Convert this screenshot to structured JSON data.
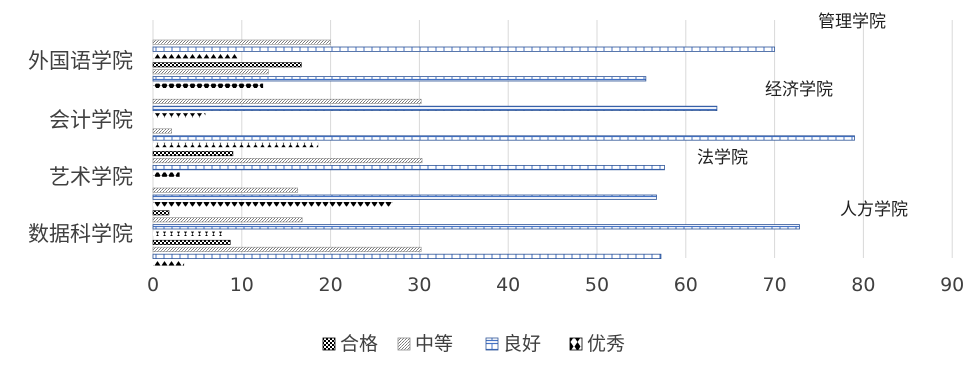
{
  "chart_data": {
    "type": "bar",
    "orientation": "horizontal",
    "categories": [
      "外国语学院",
      "会计学院",
      "艺术学院",
      "数据科学院"
    ],
    "groups": [
      {
        "name": "管理学院",
        "series": [
          {
            "name": "合格",
            "value": 0
          },
          {
            "name": "中等",
            "value": 20
          },
          {
            "name": "良好",
            "value": 70
          },
          {
            "name": "优秀",
            "value": 9.5
          }
        ]
      },
      {
        "name": "外国语学院",
        "series": [
          {
            "name": "合格",
            "value": 16.7
          },
          {
            "name": "中等",
            "value": 13
          },
          {
            "name": "良好",
            "value": 55.5
          },
          {
            "name": "优秀",
            "value": 12.4
          }
        ]
      },
      {
        "name": "经济学院",
        "series": [
          {
            "name": "合格",
            "value": 0
          },
          {
            "name": "中等",
            "value": 30.2
          },
          {
            "name": "良好",
            "value": 63.5
          },
          {
            "name": "优秀",
            "value": 5.9
          }
        ]
      },
      {
        "name": "会计学院",
        "series": [
          {
            "name": "合格",
            "value": 0
          },
          {
            "name": "中等",
            "value": 2.1
          },
          {
            "name": "良好",
            "value": 79
          },
          {
            "name": "优秀",
            "value": 18.6
          }
        ]
      },
      {
        "name": "法学院",
        "series": [
          {
            "name": "合格",
            "value": 9
          },
          {
            "name": "中等",
            "value": 30.3
          },
          {
            "name": "良好",
            "value": 57.6
          },
          {
            "name": "优秀",
            "value": 3
          }
        ]
      },
      {
        "name": "艺术学院",
        "series": [
          {
            "name": "合格",
            "value": 0
          },
          {
            "name": "中等",
            "value": 16.3
          },
          {
            "name": "良好",
            "value": 56.7
          },
          {
            "name": "优秀",
            "value": 27
          }
        ]
      },
      {
        "name": "人方学院",
        "series": [
          {
            "name": "合格",
            "value": 1.8
          },
          {
            "name": "中等",
            "value": 16.8
          },
          {
            "name": "良好",
            "value": 72.8
          },
          {
            "name": "优秀",
            "value": 8.1
          }
        ]
      },
      {
        "name": "数据科学院",
        "series": [
          {
            "name": "合格",
            "value": 8.7
          },
          {
            "name": "中等",
            "value": 30.2
          },
          {
            "name": "良好",
            "value": 57.2
          },
          {
            "name": "优秀",
            "value": 3.5
          }
        ]
      }
    ],
    "annotations": [
      "管理学院",
      "经济学院",
      "法学院",
      "人方学院"
    ],
    "legend": [
      "合格",
      "中等",
      "良好",
      "优秀"
    ],
    "xticks": [
      "0",
      "10",
      "20",
      "30",
      "40",
      "50",
      "60",
      "70",
      "80",
      "90"
    ],
    "xlim": [
      0,
      90
    ],
    "grid": "vertical",
    "legend_position": "bottom",
    "colors": {
      "hege": "#000000",
      "zhongdeng": "#8c8c8c",
      "lianghao": "#4472c4",
      "youxiu": "#000000",
      "grid": "#d9d9d9",
      "text": "#404040"
    }
  }
}
